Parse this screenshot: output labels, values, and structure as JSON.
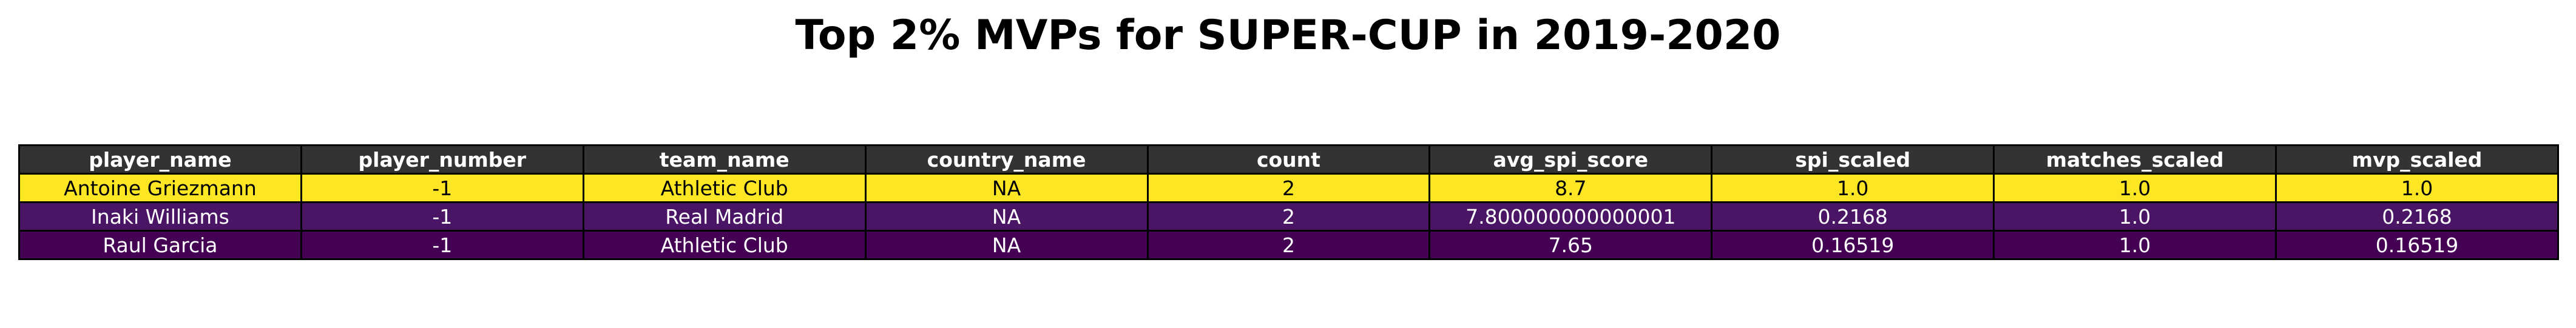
{
  "title": "Top 2% MVPs for SUPER-CUP in 2019-2020",
  "chart_data": {
    "type": "table",
    "title": "Top 2% MVPs for SUPER-CUP in 2019-2020",
    "columns": [
      "player_name",
      "player_number",
      "team_name",
      "country_name",
      "count",
      "avg_spi_score",
      "spi_scaled",
      "matches_scaled",
      "mvp_scaled"
    ],
    "rows": [
      [
        "Antoine Griezmann",
        "-1",
        "Athletic Club",
        "NA",
        "2",
        "8.7",
        "1.0",
        "1.0",
        "1.0"
      ],
      [
        "Inaki Williams",
        "-1",
        "Real Madrid",
        "NA",
        "2",
        "7.800000000000001",
        "0.2168",
        "1.0",
        "0.2168"
      ],
      [
        "Raul Garcia",
        "-1",
        "Athletic Club",
        "NA",
        "2",
        "7.65",
        "0.16519",
        "1.0",
        "0.16519"
      ]
    ],
    "row_colors": [
      {
        "bg": "#fde725",
        "fg": "#000000"
      },
      {
        "bg": "#4b1566",
        "fg": "#ffffff"
      },
      {
        "bg": "#440154",
        "fg": "#ffffff"
      }
    ],
    "header_color": "#333333",
    "colormap": "viridis",
    "colored_by": "mvp_scaled"
  }
}
